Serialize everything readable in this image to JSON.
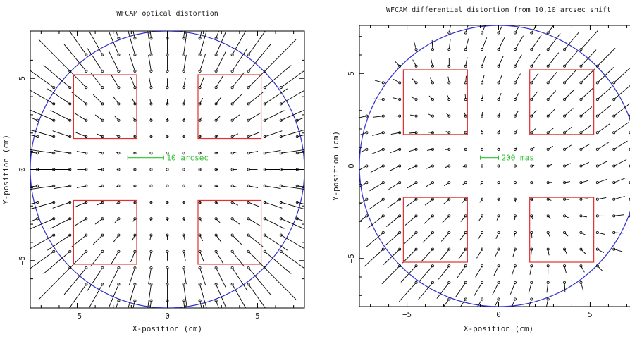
{
  "chart_data": [
    {
      "type": "scatter",
      "subtype": "vector-field",
      "title": "WFCAM optical distortion",
      "xlabel": "X-position (cm)",
      "ylabel": "Y-position (cm)",
      "xlim": [
        -7.6,
        7.6
      ],
      "ylim": [
        -7.6,
        7.6
      ],
      "xticks": [
        -5,
        0,
        5
      ],
      "yticks": [
        -5,
        0,
        5
      ],
      "grid": false,
      "grid_spacing_cm": 0.9,
      "field_radius_cm": 7.6,
      "vector_pattern": "radial",
      "vector_coeff": 0.0055,
      "scale_bar": {
        "label": "10 arcsec",
        "x": -2.2,
        "y": 0.65,
        "length_cm": 2.0
      },
      "detectors": [
        {
          "x": [
            -5.2,
            -1.7
          ],
          "y": [
            1.7,
            5.2
          ]
        },
        {
          "x": [
            1.7,
            5.2
          ],
          "y": [
            1.7,
            5.2
          ]
        },
        {
          "x": [
            -5.2,
            -1.7
          ],
          "y": [
            -5.2,
            -1.7
          ]
        },
        {
          "x": [
            1.7,
            5.2
          ],
          "y": [
            -5.2,
            -1.7
          ]
        }
      ],
      "colors": {
        "circle": "#3030d0",
        "detector": "#e03030",
        "scale": "#30c030",
        "vector": "#000000"
      }
    },
    {
      "type": "scatter",
      "subtype": "vector-field",
      "title": "WFCAM differential distortion from 10,10 arcsec shift",
      "xlabel": "X-position (cm)",
      "ylabel": "Y-position (cm)",
      "xlim": [
        -7.6,
        7.6
      ],
      "ylim": [
        -7.6,
        7.6
      ],
      "xticks": [
        -5,
        0,
        5
      ],
      "yticks": [
        -5,
        0,
        5
      ],
      "grid": false,
      "grid_spacing_cm": 0.9,
      "field_radius_cm": 7.6,
      "vector_pattern": "differential",
      "vector_coeff": 0.09,
      "scale_bar": {
        "label": "200 mas",
        "x": -1.0,
        "y": 0.45,
        "length_cm": 1.0
      },
      "detectors": [
        {
          "x": [
            -5.2,
            -1.7
          ],
          "y": [
            1.7,
            5.2
          ]
        },
        {
          "x": [
            1.7,
            5.2
          ],
          "y": [
            1.7,
            5.2
          ]
        },
        {
          "x": [
            -5.2,
            -1.7
          ],
          "y": [
            -5.2,
            -1.7
          ]
        },
        {
          "x": [
            1.7,
            5.2
          ],
          "y": [
            -5.2,
            -1.7
          ]
        }
      ],
      "colors": {
        "circle": "#3030d0",
        "detector": "#e03030",
        "scale": "#30c030",
        "vector": "#000000"
      }
    }
  ]
}
